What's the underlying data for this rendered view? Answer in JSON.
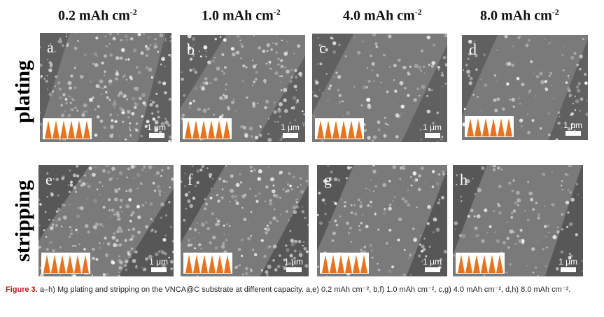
{
  "columns": [
    {
      "value": "0.2 mAh cm",
      "exp": "-2"
    },
    {
      "value": "1.0 mAh cm",
      "exp": "-2"
    },
    {
      "value": "4.0 mAh cm",
      "exp": "-2"
    },
    {
      "value": "8.0 mAh cm",
      "exp": "-2"
    }
  ],
  "rows": {
    "top": "plating",
    "bottom": "stripping"
  },
  "panels": [
    {
      "letter": "a",
      "scale": "1 μm"
    },
    {
      "letter": "b",
      "scale": "1 μm"
    },
    {
      "letter": "c",
      "scale": "1 μm"
    },
    {
      "letter": "d",
      "scale": "1 μm"
    },
    {
      "letter": "e",
      "scale": "1 μm"
    },
    {
      "letter": "f",
      "scale": "1 μm"
    },
    {
      "letter": "g",
      "scale": "1 μm"
    },
    {
      "letter": "h",
      "scale": "1 μm"
    }
  ],
  "caption": {
    "label": "Figure 3.",
    "text": "a–h) Mg plating and stripping on the VNCA@C substrate at different capacity. a,e) 0.2 mAh cm⁻², b,f) 1.0 mAh cm⁻², c,g) 4.0 mAh cm⁻², d,h) 8.0 mAh cm⁻²."
  },
  "colors": {
    "inset_fill": "#e8731e",
    "caption_label": "#b31b1b"
  }
}
